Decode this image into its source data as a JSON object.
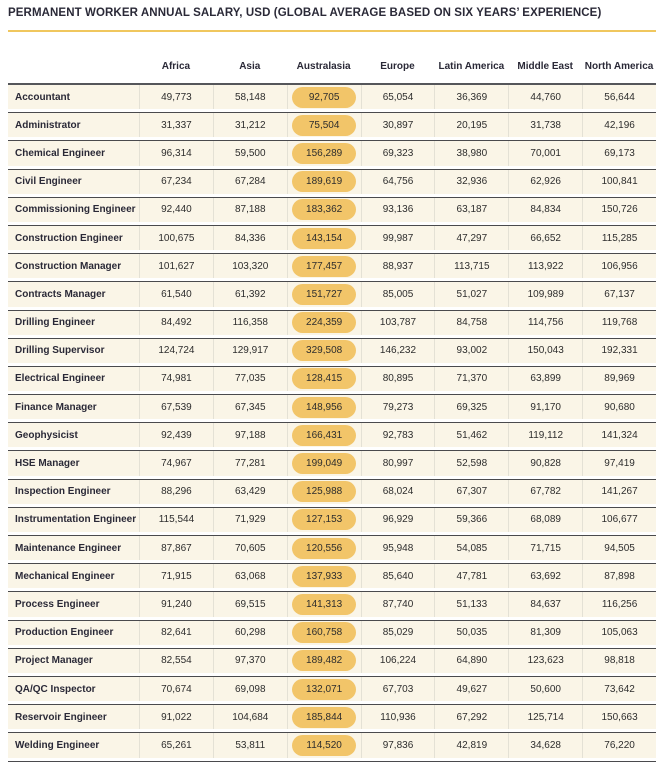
{
  "colors": {
    "accent_gold": "#f0c75e",
    "pill_gold": "#f2c569",
    "row_cream": "#faf5e7",
    "ink": "#2a2937",
    "header_rule": "#55565a",
    "row_rule": "#4a4a4d",
    "column_rule": "#e4e1d5",
    "value_text": "#2d2d2d"
  },
  "chart_data": {
    "type": "table",
    "title": "PERMANENT WORKER ANNUAL SALARY, USD (GLOBAL AVERAGE BASED ON SIX YEARS’ EXPERIENCE)",
    "columns": [
      "Africa",
      "Asia",
      "Australasia",
      "Europe",
      "Latin America",
      "Middle East",
      "North America"
    ],
    "highlight_column": "Australasia",
    "rows": [
      {
        "label": "Accountant",
        "values": [
          49773,
          58148,
          92705,
          65054,
          36369,
          44760,
          56644
        ]
      },
      {
        "label": "Administrator",
        "values": [
          31337,
          31212,
          75504,
          30897,
          20195,
          31738,
          42196
        ]
      },
      {
        "label": "Chemical Engineer",
        "values": [
          96314,
          59500,
          156289,
          69323,
          38980,
          70001,
          69173
        ]
      },
      {
        "label": "Civil Engineer",
        "values": [
          67234,
          67284,
          189619,
          64756,
          32936,
          62926,
          100841
        ]
      },
      {
        "label": "Commissioning Engineer",
        "values": [
          92440,
          87188,
          183362,
          93136,
          63187,
          84834,
          150726
        ]
      },
      {
        "label": "Construction Engineer",
        "values": [
          100675,
          84336,
          143154,
          99987,
          47297,
          66652,
          115285
        ]
      },
      {
        "label": "Construction Manager",
        "values": [
          101627,
          103320,
          177457,
          88937,
          113715,
          113922,
          106956
        ]
      },
      {
        "label": "Contracts Manager",
        "values": [
          61540,
          61392,
          151727,
          85005,
          51027,
          109989,
          67137
        ]
      },
      {
        "label": "Drilling Engineer",
        "values": [
          84492,
          116358,
          224359,
          103787,
          84758,
          114756,
          119768
        ]
      },
      {
        "label": "Drilling Supervisor",
        "values": [
          124724,
          129917,
          329508,
          146232,
          93002,
          150043,
          192331
        ]
      },
      {
        "label": "Electrical Engineer",
        "values": [
          74981,
          77035,
          128415,
          80895,
          71370,
          63899,
          89969
        ]
      },
      {
        "label": "Finance Manager",
        "values": [
          67539,
          67345,
          148956,
          79273,
          69325,
          91170,
          90680
        ]
      },
      {
        "label": "Geophysicist",
        "values": [
          92439,
          97188,
          166431,
          92783,
          51462,
          119112,
          141324
        ]
      },
      {
        "label": "HSE Manager",
        "values": [
          74967,
          77281,
          199049,
          80997,
          52598,
          90828,
          97419
        ]
      },
      {
        "label": "Inspection Engineer",
        "values": [
          88296,
          63429,
          125988,
          68024,
          67307,
          67782,
          141267
        ]
      },
      {
        "label": "Instrumentation Engineer",
        "values": [
          115544,
          71929,
          127153,
          96929,
          59366,
          68089,
          106677
        ]
      },
      {
        "label": "Maintenance Engineer",
        "values": [
          87867,
          70605,
          120556,
          95948,
          54085,
          71715,
          94505
        ]
      },
      {
        "label": "Mechanical Engineer",
        "values": [
          71915,
          63068,
          137933,
          85640,
          47781,
          63692,
          87898
        ]
      },
      {
        "label": "Process Engineer",
        "values": [
          91240,
          69515,
          141313,
          87740,
          51133,
          84637,
          116256
        ]
      },
      {
        "label": "Production Engineer",
        "values": [
          82641,
          60298,
          160758,
          85029,
          50035,
          81309,
          105063
        ]
      },
      {
        "label": "Project Manager",
        "values": [
          82554,
          97370,
          189482,
          106224,
          64890,
          123623,
          98818
        ]
      },
      {
        "label": "QA/QC Inspector",
        "values": [
          70674,
          69098,
          132071,
          67703,
          49627,
          50600,
          73642
        ]
      },
      {
        "label": "Reservoir Engineer",
        "values": [
          91022,
          104684,
          185844,
          110936,
          67292,
          125714,
          150663
        ]
      },
      {
        "label": "Welding Engineer",
        "values": [
          65261,
          53811,
          114520,
          97836,
          42819,
          34628,
          76220
        ]
      }
    ]
  }
}
